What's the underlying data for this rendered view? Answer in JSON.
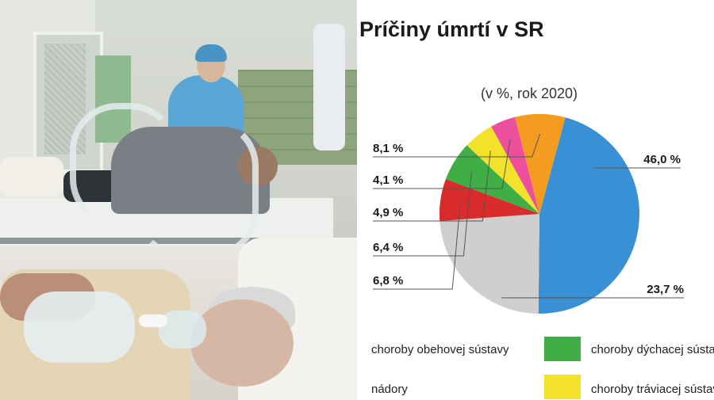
{
  "chart_data": {
    "type": "pie",
    "title": "Príčiny úmrtí v SR",
    "subtitle": "(v %, rok 2020)",
    "slices": [
      {
        "label": "46,0 %",
        "value": 46.0,
        "color": "#3a90d4"
      },
      {
        "label": "23,7 %",
        "value": 23.7,
        "color": "#cfcfcf"
      },
      {
        "label": "6,8 %",
        "value": 6.8,
        "color": "#d92b2b"
      },
      {
        "label": "6,4 %",
        "value": 6.4,
        "color": "#3fae47"
      },
      {
        "label": "4,9 %",
        "value": 4.9,
        "color": "#f2e229"
      },
      {
        "label": "4,1 %",
        "value": 4.1,
        "color": "#ec4f9c"
      },
      {
        "label": "8,1 %",
        "value": 8.1,
        "color": "#f39c1f"
      }
    ],
    "legend": [
      {
        "name": "choroby obehovej sústavy",
        "color": "#3a90d4"
      },
      {
        "name": "choroby dýchacej sústavy",
        "color": "#3fae47"
      },
      {
        "name": "nádory",
        "color": "#d92b2b"
      },
      {
        "name": "choroby tráviacej sústavy",
        "color": "#f2e229"
      }
    ]
  }
}
